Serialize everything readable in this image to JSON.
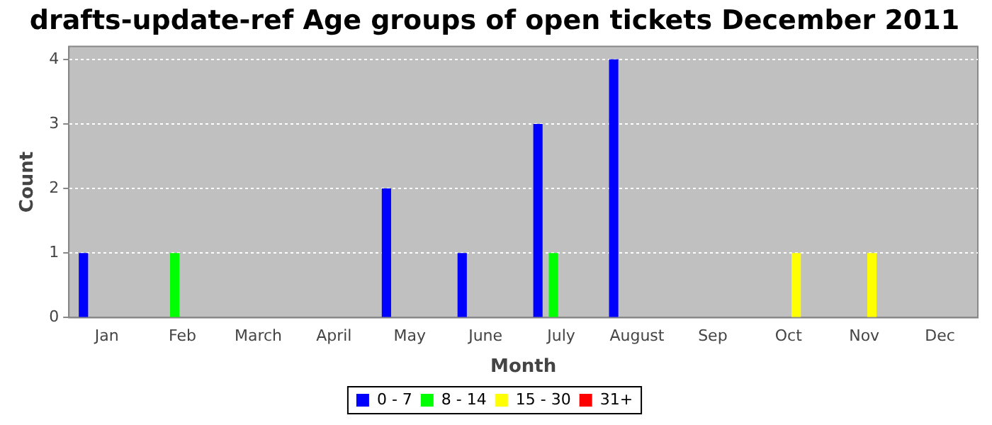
{
  "chart_data": {
    "type": "bar",
    "title": "drafts-update-ref Age groups of open tickets December 2011",
    "xlabel": "Month",
    "ylabel": "Count",
    "categories": [
      "Jan",
      "Feb",
      "March",
      "April",
      "May",
      "June",
      "July",
      "August",
      "Sep",
      "Oct",
      "Nov",
      "Dec"
    ],
    "series": [
      {
        "name": "0 - 7",
        "color": "#0000ff",
        "values": [
          1,
          0,
          0,
          0,
          2,
          1,
          3,
          4,
          0,
          0,
          0,
          0
        ]
      },
      {
        "name": "8 - 14",
        "color": "#00ff00",
        "values": [
          0,
          1,
          0,
          0,
          0,
          0,
          1,
          0,
          0,
          0,
          0,
          0
        ]
      },
      {
        "name": "15 - 30",
        "color": "#ffff00",
        "values": [
          0,
          0,
          0,
          0,
          0,
          0,
          0,
          0,
          0,
          1,
          1,
          0
        ]
      },
      {
        "name": "31+",
        "color": "#ff0000",
        "values": [
          0,
          0,
          0,
          0,
          0,
          0,
          0,
          0,
          0,
          0,
          0,
          0
        ]
      }
    ],
    "ylim": [
      0,
      4.2
    ],
    "yticks": [
      0,
      1,
      2,
      3,
      4
    ],
    "grid": "y",
    "legend": "bottom"
  }
}
